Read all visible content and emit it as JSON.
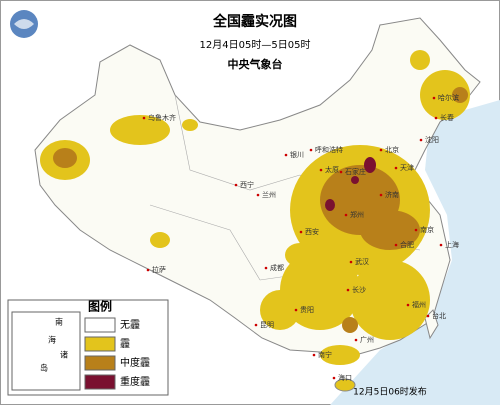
{
  "header": {
    "title": "全国霾实况图",
    "time_range": "12月4日05时—5日05时",
    "issuer": "中央气象台"
  },
  "legend": {
    "title": "图例",
    "items": [
      {
        "label": "无霾",
        "color": "#ffffff"
      },
      {
        "label": "霾",
        "color": "#e3c41c"
      },
      {
        "label": "中度霾",
        "color": "#b8801a"
      },
      {
        "label": "重度霾",
        "color": "#7a1030"
      }
    ]
  },
  "inset": {
    "labels": [
      "南",
      "海",
      "诸",
      "岛"
    ]
  },
  "cities": [
    {
      "label": "乌鲁木齐"
    },
    {
      "label": "拉萨"
    },
    {
      "label": "西宁"
    },
    {
      "label": "兰州"
    },
    {
      "label": "成都"
    },
    {
      "label": "西安"
    },
    {
      "label": "北京"
    },
    {
      "label": "天津"
    },
    {
      "label": "哈尔滨"
    },
    {
      "label": "长春"
    },
    {
      "label": "沈阳"
    },
    {
      "label": "南京"
    },
    {
      "label": "上海"
    },
    {
      "label": "武汉"
    },
    {
      "label": "长沙"
    },
    {
      "label": "南宁"
    },
    {
      "label": "海口"
    },
    {
      "label": "广州"
    },
    {
      "label": "福州"
    },
    {
      "label": "台北"
    },
    {
      "label": "贵阳"
    },
    {
      "label": "昆明"
    },
    {
      "label": "合肥"
    },
    {
      "label": "郑州"
    },
    {
      "label": "济南"
    },
    {
      "label": "石家庄"
    },
    {
      "label": "太原"
    },
    {
      "label": "呼和浩特"
    },
    {
      "label": "银川"
    }
  ],
  "footer": "12月5日06时发布"
}
